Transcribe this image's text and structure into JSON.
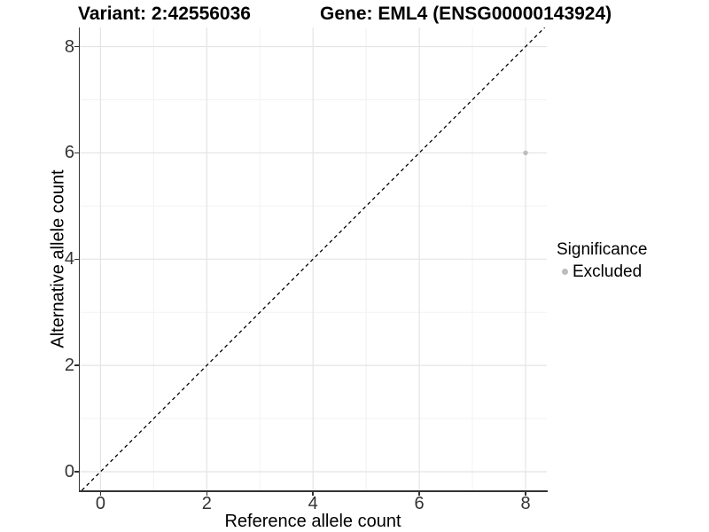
{
  "titles": {
    "variant": "Variant: 2:42556036",
    "gene": "Gene: EML4 (ENSG00000143924)"
  },
  "axes": {
    "x": {
      "label": "Reference allele count",
      "tick_labels": [
        "0",
        "2",
        "4",
        "6",
        "8"
      ]
    },
    "y": {
      "label": "Alternative allele count",
      "tick_labels": [
        "0",
        "2",
        "4",
        "6",
        "8"
      ]
    }
  },
  "legend": {
    "title": "Significance",
    "items": [
      {
        "label": "Excluded",
        "color": "#bdbdbd"
      }
    ]
  },
  "styles": {
    "background": "#ffffff",
    "grid_major": "#e4e4e4",
    "grid_minor": "#f2f2f2",
    "axis_line": "#333333",
    "tick_text": "#333333",
    "reference_line": "#000000",
    "point_color": "#bdbdbd"
  },
  "chart_data": {
    "type": "scatter",
    "title": "Variant: 2:42556036    Gene: EML4 (ENSG00000143924)",
    "xlabel": "Reference allele count",
    "ylabel": "Alternative allele count",
    "xlim": [
      -0.39,
      8.4
    ],
    "ylim": [
      -0.35,
      8.36
    ],
    "x_major_ticks": [
      0,
      2,
      4,
      6,
      8
    ],
    "y_major_ticks": [
      0,
      2,
      4,
      6,
      8
    ],
    "x_minor_ticks": [
      1,
      3,
      5,
      7
    ],
    "y_minor_ticks": [
      1,
      3,
      5,
      7
    ],
    "grid": true,
    "legend_position": "right",
    "reference_line": {
      "kind": "identity",
      "equation": "y = x",
      "style": "dashed",
      "color": "#000000"
    },
    "series": [
      {
        "name": "Excluded",
        "color": "#bdbdbd",
        "marker": "circle",
        "points": [
          {
            "x": 8,
            "y": 6
          }
        ]
      }
    ]
  }
}
